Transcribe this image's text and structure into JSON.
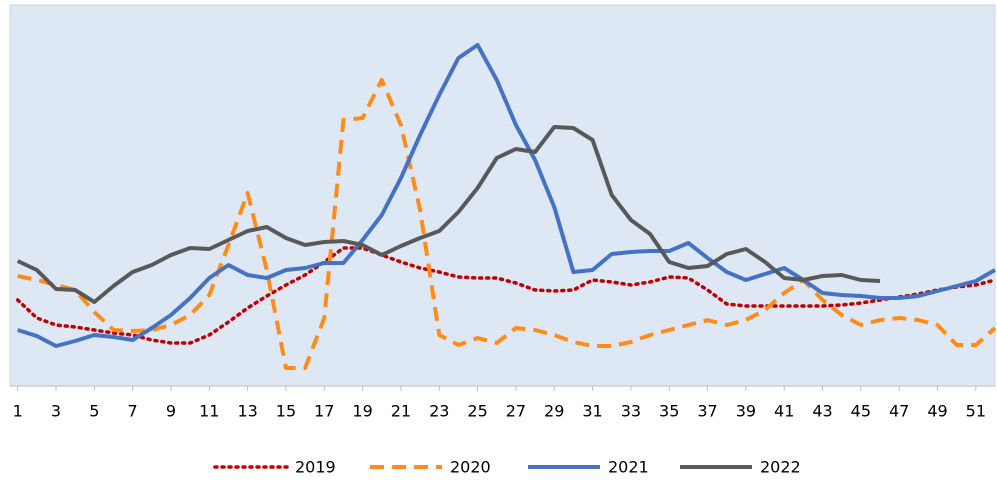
{
  "chart_data": {
    "type": "line",
    "x": [
      1,
      2,
      3,
      4,
      5,
      6,
      7,
      8,
      9,
      10,
      11,
      12,
      13,
      14,
      15,
      16,
      17,
      18,
      19,
      20,
      21,
      22,
      23,
      24,
      25,
      26,
      27,
      28,
      29,
      30,
      31,
      32,
      33,
      34,
      35,
      36,
      37,
      38,
      39,
      40,
      41,
      42,
      43,
      44,
      45,
      46,
      47,
      48,
      49,
      50,
      51,
      52
    ],
    "xlim": [
      0.6,
      52
    ],
    "xticks": [
      1,
      3,
      5,
      7,
      9,
      11,
      13,
      15,
      17,
      19,
      21,
      23,
      25,
      27,
      29,
      31,
      33,
      35,
      37,
      39,
      41,
      43,
      45,
      47,
      49,
      51
    ],
    "ylim": [
      0,
      381
    ],
    "legend": "bottom",
    "series": [
      {
        "name": "2019",
        "color": "#c00000",
        "dash": "dotted",
        "values": [
          86,
          68,
          61,
          59,
          56,
          53,
          51,
          46,
          43,
          43,
          51,
          64,
          78,
          90,
          101,
          111,
          124,
          138,
          138,
          131,
          124,
          118,
          114,
          109,
          108,
          108,
          103,
          96,
          95,
          96,
          106,
          104,
          101,
          104,
          109,
          108,
          96,
          82,
          80,
          80,
          80,
          80,
          80,
          81,
          83,
          86,
          89,
          92,
          96,
          99,
          101,
          106
        ]
      },
      {
        "name": "2020",
        "color": "#ff8c1a",
        "dash": "dashed",
        "values": [
          110,
          106,
          101,
          96,
          74,
          56,
          55,
          56,
          61,
          71,
          91,
          141,
          193,
          116,
          18,
          18,
          68,
          266,
          268,
          306,
          261,
          176,
          51,
          41,
          48,
          43,
          58,
          56,
          51,
          44,
          40,
          40,
          44,
          51,
          56,
          61,
          66,
          61,
          66,
          76,
          93,
          106,
          86,
          71,
          61,
          66,
          68,
          66,
          61,
          41,
          41,
          58
        ]
      },
      {
        "name": "2021",
        "color": "#4472c4",
        "dash": "solid",
        "values": [
          56,
          50,
          40,
          45,
          51,
          49,
          46,
          58,
          71,
          88,
          108,
          121,
          111,
          108,
          116,
          118,
          123,
          123,
          146,
          171,
          208,
          251,
          291,
          328,
          341,
          306,
          261,
          226,
          179,
          114,
          116,
          132,
          134,
          135,
          135,
          143,
          128,
          114,
          106,
          112,
          118,
          106,
          93,
          91,
          90,
          88,
          88,
          90,
          95,
          100,
          105,
          116
        ]
      },
      {
        "name": "2022",
        "color": "#595959",
        "dash": "solid",
        "values": [
          125,
          116,
          97,
          96,
          84,
          100,
          114,
          121,
          131,
          138,
          137,
          146,
          155,
          159,
          148,
          141,
          144,
          145,
          141,
          131,
          140,
          148,
          155,
          174,
          198,
          228,
          237,
          234,
          259,
          258,
          246,
          191,
          166,
          152,
          124,
          118,
          120,
          132,
          137,
          124,
          108,
          106,
          110,
          111,
          106,
          105,
          null,
          null,
          null,
          null,
          null,
          null
        ]
      }
    ]
  }
}
